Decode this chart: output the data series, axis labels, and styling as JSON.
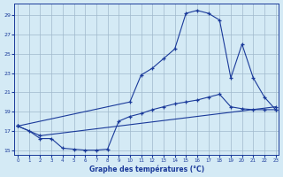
{
  "xlabel": "Graphe des températures (°C)",
  "bg_color": "#d4eaf5",
  "grid_color": "#a0b8cc",
  "line_color": "#1a3a9a",
  "xlim": [
    -0.3,
    23.3
  ],
  "ylim": [
    14.5,
    30.2
  ],
  "yticks": [
    15,
    17,
    19,
    21,
    23,
    25,
    27,
    29
  ],
  "xticks": [
    0,
    1,
    2,
    3,
    4,
    5,
    6,
    7,
    8,
    9,
    10,
    11,
    12,
    13,
    14,
    15,
    16,
    17,
    18,
    19,
    20,
    21,
    22,
    23
  ],
  "line1_x": [
    0,
    1,
    2,
    3,
    4,
    5,
    6,
    7,
    8,
    9,
    10,
    11,
    12,
    13,
    14,
    15,
    16,
    17,
    18,
    19,
    20,
    21,
    22,
    23
  ],
  "line1_y": [
    17.5,
    17.0,
    16.2,
    16.2,
    15.2,
    15.1,
    15.0,
    15.0,
    15.1,
    18.0,
    18.5,
    18.8,
    19.2,
    19.5,
    19.8,
    20.0,
    20.2,
    20.5,
    20.8,
    19.5,
    19.3,
    19.2,
    19.2,
    19.2
  ],
  "line2_x": [
    0,
    2,
    23
  ],
  "line2_y": [
    17.5,
    16.5,
    19.5
  ],
  "line3_x": [
    0,
    10,
    11,
    12,
    13,
    14,
    15,
    16,
    17,
    18,
    19,
    20,
    21,
    22,
    23
  ],
  "line3_y": [
    17.5,
    20.0,
    22.8,
    23.5,
    24.5,
    25.5,
    29.2,
    29.5,
    29.2,
    28.5,
    22.5,
    26.0,
    22.5,
    20.5,
    19.2
  ]
}
